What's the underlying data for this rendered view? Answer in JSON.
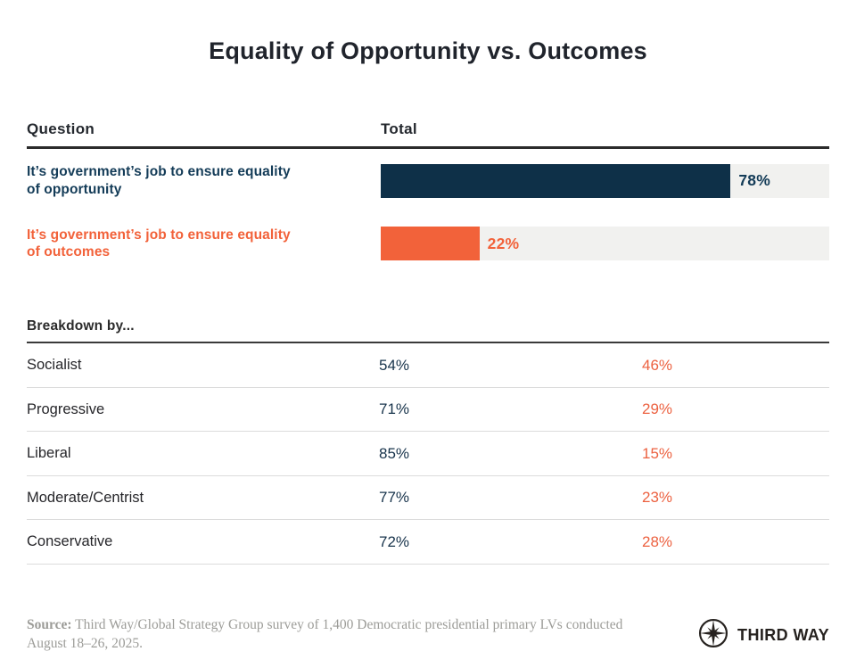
{
  "title": "Equality of Opportunity vs. Outcomes",
  "colors": {
    "navy_bar": "#0e3048",
    "navy_text": "#143c58",
    "orange_bar": "#f2623a",
    "orange_text": "#ec6140",
    "bar_track": "#f1f1ef",
    "divider": "#dcdcdc",
    "dark_rule": "#2b2b2b",
    "title_color": "#20242c",
    "footer_gray": "#9c9c98",
    "logo_color": "#26221f"
  },
  "chart_data": {
    "type": "bar",
    "title": "Equality of Opportunity vs. Outcomes",
    "axis_max": 100,
    "columns": {
      "question": "Question",
      "total": "Total"
    },
    "bars": [
      {
        "label_line1": "It’s government’s job to ensure equality",
        "label_line2_prefix": "of ",
        "label_emphasis": "opportunity",
        "value": 78,
        "display": "78%",
        "bar_color": "#0e3048",
        "text_color": "#143c58"
      },
      {
        "label_line1": "It’s government’s job to ensure equality",
        "label_line2_prefix": "of ",
        "label_emphasis": "outcomes",
        "value": 22,
        "display": "22%",
        "bar_color": "#f2623a",
        "text_color": "#f2623a"
      }
    ],
    "breakdown": {
      "heading": "Breakdown by...",
      "series": [
        "equality of opportunity",
        "equality of outcomes"
      ],
      "rows": [
        {
          "group": "Socialist",
          "opportunity": 54,
          "opportunity_display": "54%",
          "outcomes": 46,
          "outcomes_display": "46%"
        },
        {
          "group": "Progressive",
          "opportunity": 71,
          "opportunity_display": "71%",
          "outcomes": 29,
          "outcomes_display": "29%"
        },
        {
          "group": "Liberal",
          "opportunity": 85,
          "opportunity_display": "85%",
          "outcomes": 15,
          "outcomes_display": "15%"
        },
        {
          "group": "Moderate/Centrist",
          "opportunity": 77,
          "opportunity_display": "77%",
          "outcomes": 23,
          "outcomes_display": "23%"
        },
        {
          "group": "Conservative",
          "opportunity": 72,
          "opportunity_display": "72%",
          "outcomes": 28,
          "outcomes_display": "28%"
        }
      ]
    }
  },
  "footer": {
    "source_label": "Source:",
    "source_text": " Third Way/Global Strategy Group survey of 1,400 Democratic presidential primary LVs conducted August 18–26, 2025.",
    "logo_text": "THIRD WAY"
  }
}
